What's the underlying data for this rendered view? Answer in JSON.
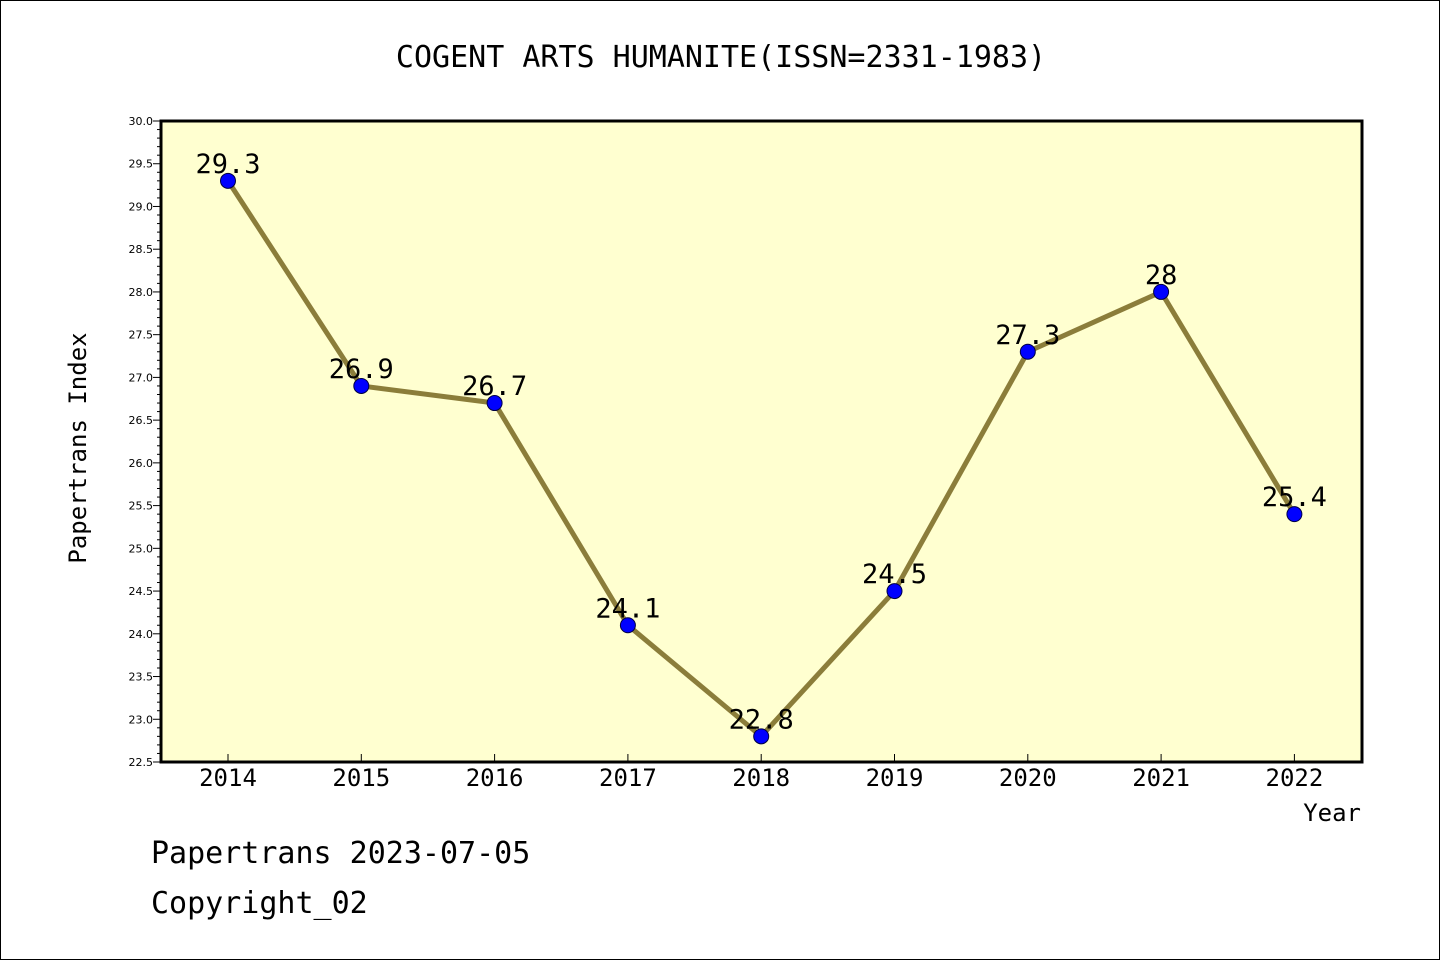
{
  "chart_data": {
    "type": "line",
    "title": "COGENT ARTS HUMANITE(ISSN=2331-1983)",
    "xlabel": "Year",
    "ylabel": "Papertrans Index",
    "categories": [
      "2014",
      "2015",
      "2016",
      "2017",
      "2018",
      "2019",
      "2020",
      "2021",
      "2022"
    ],
    "values": [
      29.3,
      26.9,
      26.7,
      24.1,
      22.8,
      24.5,
      27.3,
      28,
      25.4
    ],
    "data_labels": [
      "29.3",
      "26.9",
      "26.7",
      "24.1",
      "22.8",
      "24.5",
      "27.3",
      "28",
      "25.4"
    ],
    "ylim": [
      22.5,
      30.0
    ],
    "yticks": [
      "22.5",
      "23.0",
      "23.5",
      "24.0",
      "24.5",
      "25.0",
      "25.5",
      "26.0",
      "26.5",
      "27.0",
      "27.5",
      "28.0",
      "28.5",
      "29.0",
      "29.5",
      "30.0"
    ],
    "grid": false,
    "legend": "none",
    "colors": {
      "plot_background": "#ffffd0",
      "line": "#8b7d3a",
      "marker": "#0000ff"
    }
  },
  "footer": {
    "source": "Papertrans 2023-07-05",
    "copyright": "Copyright_02"
  }
}
